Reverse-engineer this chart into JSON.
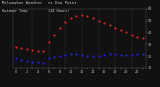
{
  "bg_color": "#111111",
  "plot_bg": "#111111",
  "text_color": "#cccccc",
  "legend_blue_color": "#0000ee",
  "legend_red_color": "#dd0000",
  "hours": [
    0,
    1,
    2,
    3,
    4,
    5,
    6,
    7,
    8,
    9,
    10,
    11,
    12,
    13,
    14,
    15,
    16,
    17,
    18,
    19,
    20,
    21,
    22,
    23
  ],
  "temp": [
    28,
    27,
    26,
    25,
    24,
    24,
    32,
    38,
    44,
    49,
    52,
    54,
    55,
    54,
    52,
    50,
    48,
    46,
    44,
    42,
    40,
    38,
    36,
    35
  ],
  "dew": [
    18,
    17,
    16,
    15,
    15,
    14,
    18,
    19,
    20,
    21,
    22,
    22,
    21,
    20,
    20,
    20,
    21,
    22,
    22,
    21,
    21,
    21,
    22,
    22
  ],
  "ylim": [
    10,
    60
  ],
  "yticks": [
    10,
    20,
    30,
    40,
    50,
    60
  ],
  "vline_positions": [
    3,
    6,
    9,
    12,
    15,
    18,
    21
  ],
  "dot_size": 2.5,
  "title_fontsize": 2.8,
  "tick_fontsize": 2.4
}
